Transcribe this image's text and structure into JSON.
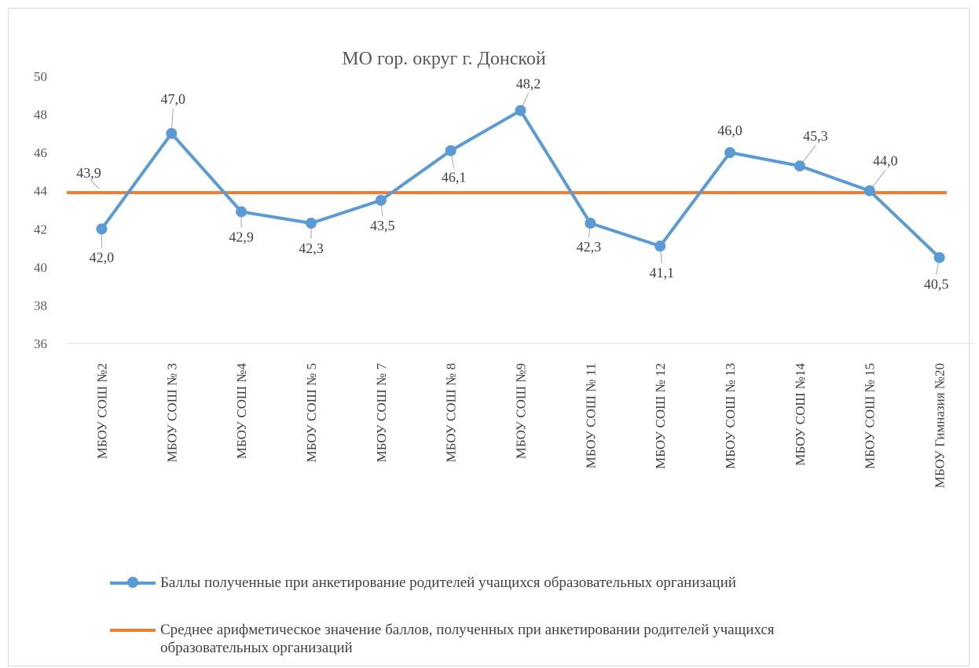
{
  "chart_data": {
    "type": "line",
    "title": "МО гор. округ г. Донской",
    "xlabel": "",
    "ylabel": "",
    "ylim": [
      36,
      50
    ],
    "yticks": [
      "50",
      "48",
      "46",
      "44",
      "42",
      "40",
      "38",
      "36"
    ],
    "grid": false,
    "legend_position": "bottom",
    "categories": [
      "МБОУ СОШ №2",
      "МБОУ СОШ № 3",
      "МБОУ СОШ №4",
      "МБОУ СОШ  № 5",
      "МБОУ СОШ  № 7",
      "МБОУ СОШ № 8",
      "МБОУ СОШ №9",
      "МБОУ СОШ № 11",
      "МБОУ СОШ № 12",
      "МБОУ СОШ № 13",
      "МБОУ СОШ №14",
      "МБОУ  СОШ № 15",
      "МБОУ Гимназия №20"
    ],
    "series": [
      {
        "name": "Баллы полученные при анкетирование родителей учащихся образовательных организаций",
        "values": [
          42.0,
          47.0,
          42.9,
          42.3,
          43.5,
          46.1,
          48.2,
          42.3,
          41.1,
          46.0,
          45.3,
          44.0,
          40.5
        ],
        "labels": [
          "42,0",
          "47,0",
          "42,9",
          "42,3",
          "43,5",
          "46,1",
          "48,2",
          "42,3",
          "41,1",
          "46,0",
          "45,3",
          "44,0",
          "40,5"
        ],
        "color": "#5b9bd5",
        "marker": "circle"
      },
      {
        "name": "Среднее арифметическое значение баллов, полученных при  анкетировании родителей учащихся образовательных организаций",
        "value": 43.9,
        "label": "43,9",
        "color": "#ed7d31"
      }
    ]
  }
}
